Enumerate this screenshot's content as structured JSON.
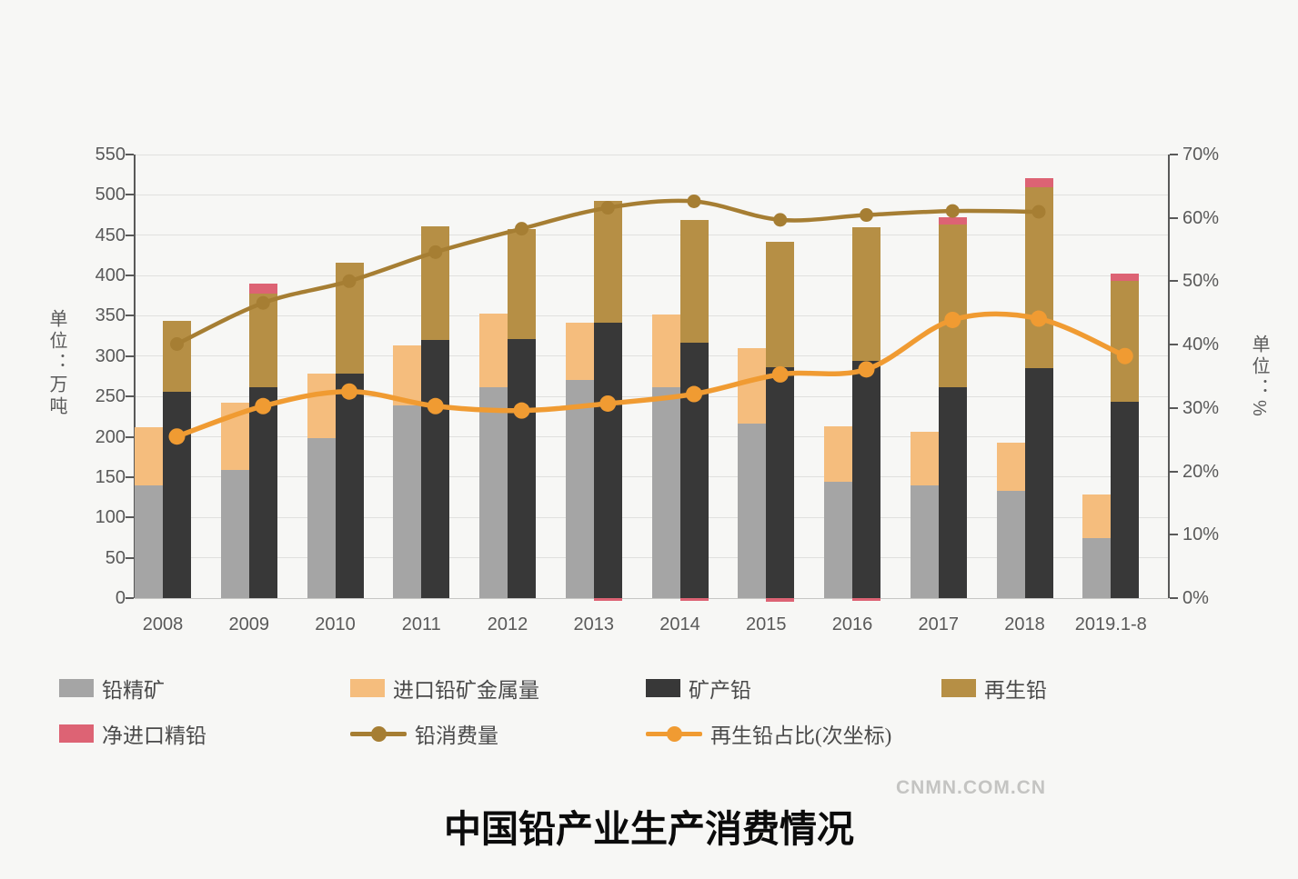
{
  "title": "中国铅产业生产消费情况",
  "watermark": "CNMN.COM.CN",
  "left_axis": {
    "unit_label": "单位：万吨",
    "min": 0,
    "max": 550,
    "step": 50,
    "tick_labels": [
      "0",
      "50",
      "100",
      "150",
      "200",
      "250",
      "300",
      "350",
      "400",
      "450",
      "500",
      "550"
    ]
  },
  "right_axis": {
    "unit_label": "单位：%",
    "min": 0,
    "max": 70,
    "step": 10,
    "tick_labels": [
      "0%",
      "10%",
      "20%",
      "30%",
      "40%",
      "50%",
      "60%",
      "70%"
    ]
  },
  "legend": {
    "row1": [
      {
        "label": "铅精矿",
        "symbol": "swatch",
        "color": "#a5a5a5"
      },
      {
        "label": "进口铅矿金属量",
        "symbol": "swatch",
        "color": "#f5bd7d"
      },
      {
        "label": "矿产铅",
        "symbol": "swatch",
        "color": "#383838"
      },
      {
        "label": "再生铅",
        "symbol": "swatch",
        "color": "#b68f45"
      }
    ],
    "row2": [
      {
        "label": "净进口精铅",
        "symbol": "swatch",
        "color": "#dd6374"
      },
      {
        "label": "铅消费量",
        "symbol": "line",
        "color": "#a67e33"
      },
      {
        "label": "再生铅占比(次坐标)",
        "symbol": "line",
        "color": "#f09b32"
      }
    ]
  },
  "chart_data": {
    "type": "bar",
    "subtype": "dual-axis combo: two stacked bars per category + two lines",
    "title": "中国铅产业生产消费情况",
    "xlabel": "",
    "ylabel_left": "单位：万吨",
    "ylabel_right": "单位：%",
    "left_ylim": [
      0,
      550
    ],
    "right_ylim": [
      0,
      70
    ],
    "grid": true,
    "legend_position": "bottom",
    "categories": [
      "2008",
      "2009",
      "2010",
      "2011",
      "2012",
      "2013",
      "2014",
      "2015",
      "2016",
      "2017",
      "2018",
      "2019.1-8"
    ],
    "series": [
      {
        "name": "铅精矿",
        "english": "lead-concentrate",
        "type": "bar",
        "stack": "ore",
        "axis": "left",
        "color": "#a5a5a5",
        "values": [
          140,
          159,
          198,
          239,
          261,
          270,
          261,
          216,
          144,
          140,
          133,
          74
        ]
      },
      {
        "name": "进口铅矿金属量",
        "english": "imported-ore-metal",
        "type": "bar",
        "stack": "ore",
        "axis": "left",
        "color": "#f5bd7d",
        "values": [
          72,
          83,
          80,
          74,
          92,
          72,
          91,
          94,
          69,
          66,
          60,
          54
        ]
      },
      {
        "name": "矿产铅",
        "english": "mined-lead",
        "type": "bar",
        "stack": "lead",
        "axis": "left",
        "color": "#383838",
        "values": [
          256,
          262,
          278,
          320,
          321,
          342,
          317,
          286,
          294,
          261,
          285,
          244
        ]
      },
      {
        "name": "再生铅",
        "english": "recycled-lead",
        "type": "bar",
        "stack": "lead",
        "axis": "left",
        "color": "#b68f45",
        "values": [
          88,
          115,
          138,
          141,
          137,
          151,
          152,
          156,
          166,
          202,
          224,
          149
        ]
      },
      {
        "name": "净进口精铅",
        "english": "net-imported-refined-lead",
        "type": "bar",
        "stack": "lead",
        "axis": "left",
        "color": "#dd6374",
        "values": [
          0,
          13,
          0,
          0,
          0,
          -3,
          -3,
          -4,
          -3,
          9,
          12,
          9
        ]
      },
      {
        "name": "铅消费量",
        "english": "lead-consumption",
        "type": "line",
        "axis": "left",
        "color": "#a67e33",
        "values": [
          315,
          366,
          393,
          429,
          458,
          484,
          492,
          469,
          475,
          480,
          479,
          null
        ]
      },
      {
        "name": "再生铅占比(次坐标)",
        "english": "recycled-lead-share",
        "type": "line",
        "axis": "right",
        "color": "#f09b32",
        "values": [
          25.5,
          30.3,
          32.6,
          30.3,
          29.6,
          30.7,
          32.2,
          35.3,
          36.1,
          43.9,
          44.1,
          38.2
        ]
      }
    ]
  }
}
